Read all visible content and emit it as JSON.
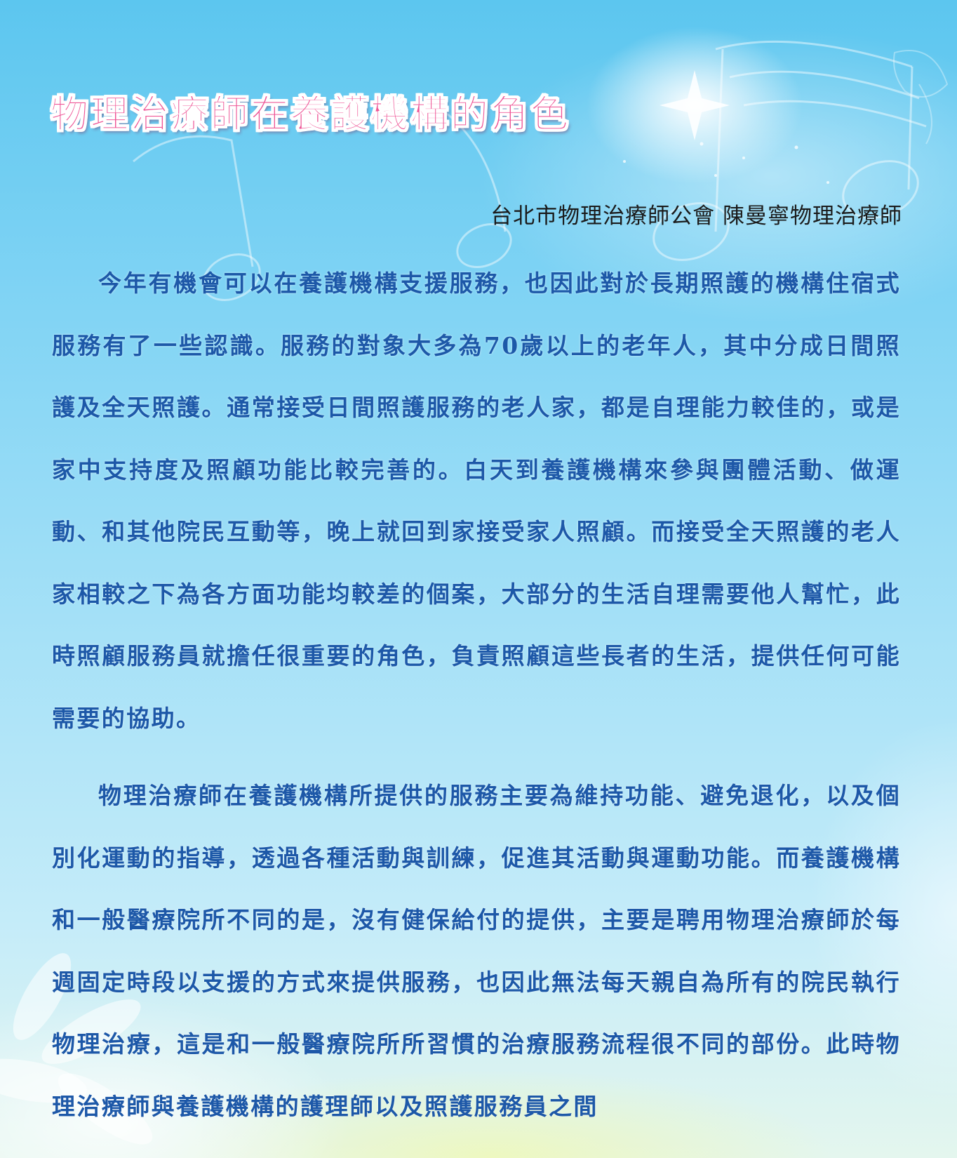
{
  "article": {
    "title": "物理治療師在養護機構的角色",
    "author": "台北市物理治療師公會 陳曼寧物理治療師",
    "paragraphs": [
      "今年有機會可以在養護機構支援服務，也因此對於長期照護的機構住宿式服務有了一些認識。服務的對象大多為70歲以上的老年人，其中分成日間照護及全天照護。通常接受日間照護服務的老人家，都是自理能力較佳的，或是家中支持度及照顧功能比較完善的。白天到養護機構來參與團體活動、做運動、和其他院民互動等，晚上就回到家接受家人照顧。而接受全天照護的老人家相較之下為各方面功能均較差的個案，大部分的生活自理需要他人幫忙，此時照顧服務員就擔任很重要的角色，負責照顧這些長者的生活，提供任何可能需要的協助。",
      "物理治療師在養護機構所提供的服務主要為維持功能、避免退化，以及個別化運動的指導，透過各種活動與訓練，促進其活動與運動功能。而養護機構和一般醫療院所不同的是，沒有健保給付的提供，主要是聘用物理治療師於每週固定時段以支援的方式來提供服務，也因此無法每天親自為所有的院民執行物理治療，這是和一般醫療院所所習慣的治療服務流程很不同的部份。此時物理治療師與養護機構的護理師以及照護服務員之間"
    ]
  },
  "colors": {
    "title": "#ee5596",
    "author": "#1b1b1b",
    "body": "#1d58a8",
    "background_top": "#5cc6ef",
    "background_bottom": "#e4f6ee"
  }
}
